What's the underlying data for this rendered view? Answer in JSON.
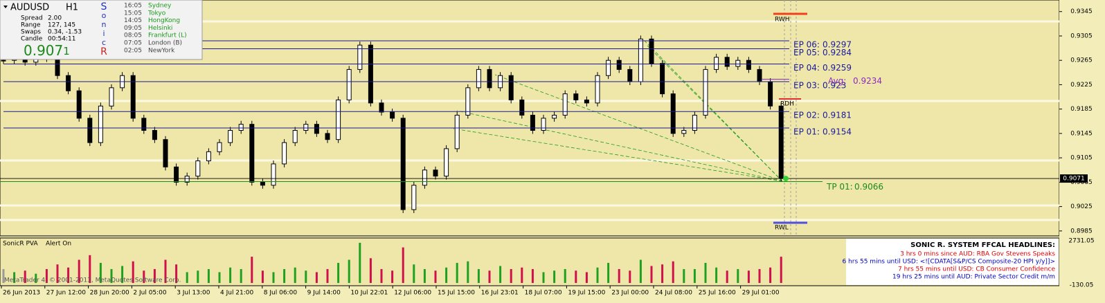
{
  "info": {
    "symbol": "AUDUSD",
    "timeframe": "H1",
    "spread_label": "Spread",
    "spread": "2.00",
    "range_label": "Range",
    "range": "127, 145",
    "swaps_label": "Swaps",
    "swaps": "0.34, -1.53",
    "candle_label": "Candle",
    "candle": "00:54:11",
    "bid_main": "0.907",
    "bid_pip": "1"
  },
  "sonic": [
    "S",
    "o",
    "n",
    "i",
    "c",
    "R"
  ],
  "sessions": [
    {
      "time": "16:05",
      "name": "Sydney"
    },
    {
      "time": "15:05",
      "name": "Tokyo"
    },
    {
      "time": "14:05",
      "name": "HongKong"
    },
    {
      "time": "09:05",
      "name": "Helsinki"
    },
    {
      "time": "08:05",
      "name": "Frankfurt  (L)"
    },
    {
      "time": "07:05",
      "name": "London  (B)"
    },
    {
      "time": "02:05",
      "name": "NewYork"
    }
  ],
  "chart": {
    "ylim": [
      0.8978,
      0.9364
    ],
    "yticks": [
      0.9345,
      0.9305,
      0.9265,
      0.9225,
      0.9185,
      0.9145,
      0.9105,
      0.9065,
      0.9025,
      0.8985
    ],
    "closes": [
      0.9265,
      0.927,
      0.9262,
      0.9275,
      0.9268,
      0.924,
      0.9215,
      0.917,
      0.913,
      0.919,
      0.922,
      0.924,
      0.917,
      0.915,
      0.9135,
      0.909,
      0.9065,
      0.9075,
      0.91,
      0.9115,
      0.913,
      0.915,
      0.916,
      0.9065,
      0.906,
      0.9095,
      0.913,
      0.915,
      0.916,
      0.9145,
      0.9135,
      0.92,
      0.925,
      0.929,
      0.9195,
      0.918,
      0.917,
      0.902,
      0.906,
      0.9085,
      0.9075,
      0.912,
      0.9175,
      0.922,
      0.925,
      0.922,
      0.924,
      0.92,
      0.9175,
      0.915,
      0.917,
      0.9175,
      0.921,
      0.92,
      0.9195,
      0.924,
      0.9265,
      0.925,
      0.923,
      0.93,
      0.926,
      0.921,
      0.9145,
      0.915,
      0.9175,
      0.925,
      0.927,
      0.9255,
      0.9265,
      0.925,
      0.923,
      0.919,
      0.9071
    ],
    "colors": {
      "up": "#ffffff",
      "down": "#000000"
    },
    "last_price": 0.9071,
    "levels": [
      {
        "label": "EP 06:",
        "value": 0.9297
      },
      {
        "label": "EP 05:",
        "value": 0.9284
      },
      {
        "label": "EP 04:",
        "value": 0.9259
      },
      {
        "label": "EP 03:",
        "value": 0.923
      },
      {
        "label": "EP 02:",
        "value": 0.9181
      },
      {
        "label": "EP 01:",
        "value": 0.9154
      }
    ],
    "tp": {
      "label": "TP 01:",
      "value": 0.9066
    },
    "avg": {
      "label": "Avg:",
      "value": 0.9234
    },
    "markers": {
      "rwh": "RWH",
      "rwl": "RWL",
      "rdh": "RDH"
    },
    "dates": [
      "26 Jun 2013",
      "27 Jun 12:00",
      "28 Jun 20:00",
      "2 Jul 05:00",
      "3 Jul 13:00",
      "4 Jul 21:00",
      "8 Jul 06:00",
      "9 Jul 14:00",
      "10 Jul 22:01",
      "12 Jul 06:00",
      "15 Jul 15:00",
      "16 Jul 23:01",
      "18 Jul 07:00",
      "19 Jul 15:00",
      "23 Jul 00:00",
      "24 Jul 08:00",
      "25 Jul 16:00",
      "29 Jul 01:00"
    ]
  },
  "volume": {
    "title": "SonicR PVA",
    "status": "Alert On",
    "ylim": [
      -130.05,
      2731.05
    ],
    "yticks": [
      2731.05,
      -130.05
    ],
    "colors": {
      "up": "#20a020",
      "down": "#d0104a",
      "flat": "#9a9a9a"
    },
    "values": [
      900,
      700,
      800,
      600,
      900,
      1200,
      1000,
      1500,
      1800,
      1300,
      900,
      1100,
      1400,
      800,
      900,
      1500,
      1200,
      700,
      800,
      900,
      700,
      1000,
      900,
      1700,
      800,
      700,
      900,
      1000,
      800,
      700,
      900,
      1300,
      1500,
      2600,
      1600,
      900,
      800,
      2300,
      1200,
      900,
      800,
      1000,
      1300,
      1400,
      900,
      800,
      1100,
      900,
      1000,
      900,
      700,
      800,
      900,
      800,
      700,
      1000,
      1300,
      900,
      800,
      1500,
      1100,
      1200,
      1400,
      900,
      900,
      1300,
      1000,
      800,
      900,
      800,
      900,
      1000,
      1700
    ]
  },
  "headlines": {
    "title": "SONIC R. SYSTEM  FFCAL HEADLINES:",
    "items": [
      {
        "text": "3 hrs 0 mins since AUD: RBA Gov Stevens Speaks",
        "color": "#e00000"
      },
      {
        "text": "6 hrs 55 mins until USD: <![CDATA[S&P/CS Composite-20 HPI y/y]]>",
        "color": "#0000c0"
      },
      {
        "text": "7 hrs 55 mins until USD: CB Consumer Confidence",
        "color": "#e00000"
      },
      {
        "text": "19 hrs 25 mins until AUD: Private Sector Credit m/m",
        "color": "#0000c0"
      }
    ]
  },
  "copyright": "MetaTrader 4, © 2001-2013, MetaQuotes Software Corp."
}
